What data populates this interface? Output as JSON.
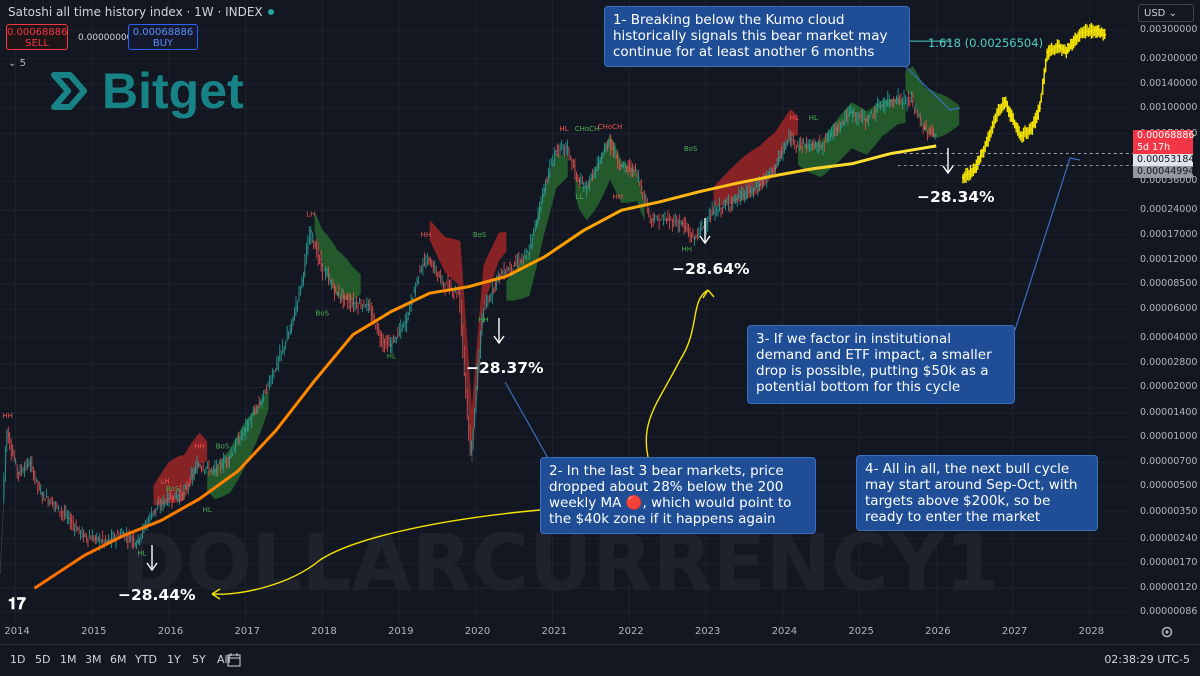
{
  "header": {
    "title": "Satoshi all time history index · 1W · INDEX",
    "sell_price": "0.00068886",
    "sell_label": "SELL",
    "spread": "0.00000000",
    "buy_price": "0.00068886",
    "buy_label": "BUY",
    "indicator_count": "5"
  },
  "logo": {
    "text": "Bitget",
    "color": "#1aa7a9"
  },
  "watermark": "DOLLARCURRENCY1",
  "currency_selector": "USD",
  "fib_label": "1.618 (0.00256504)",
  "annotations": [
    {
      "id": 1,
      "text": "1- Breaking below the Kumo cloud historically signals this bear market may continue for at least another 6 months"
    },
    {
      "id": 2,
      "text": "2- In the last 3 bear markets, price dropped about 28% below the 200 weekly MA 🔴, which would point to the $40k zone if it happens again"
    },
    {
      "id": 3,
      "text": "3- If we factor in institutional demand and ETF impact, a smaller drop is possible, putting $50k as a potential bottom for this cycle"
    },
    {
      "id": 4,
      "text": "4- All in all, the next bull cycle may start around Sep-Oct, with targets above $200k, so be ready to enter the market"
    }
  ],
  "drops": [
    "−28.44%",
    "−28.37%",
    "−28.64%",
    "−28.34%"
  ],
  "structure_labels": [
    "HH",
    "HH",
    "BoS",
    "LH",
    "BoS",
    "HL",
    "HL",
    "LH",
    "BoS",
    "HL",
    "HH",
    "BoS",
    "HH",
    "HL",
    "CHoCH",
    "CHoCH",
    "LL",
    "HH",
    "BoS",
    "HH",
    "HL",
    "HL"
  ],
  "price_tags": {
    "current": "0.00068886",
    "countdown": "5d 17h",
    "level_a": "0.00053184",
    "level_b": "0.00044994"
  },
  "colors": {
    "background": "#131722",
    "candle_up": "#26a69a",
    "candle_down": "#ef5350",
    "ma_line": "#ff9800",
    "cloud_bull": "#2e7d32",
    "cloud_bear": "#c62828",
    "projection": "#f5e400",
    "note_bg": "#1f4e97"
  },
  "chart_data": {
    "type": "line",
    "title": "Satoshi all time history index · 1W · INDEX",
    "yscale": "log",
    "ylim": [
      8.6e-07,
      0.003
    ],
    "xlim": [
      2013.9,
      2028.6
    ],
    "y_tick_labels": [
      "0.00300000",
      "0.00200000",
      "0.00140000",
      "0.00100000",
      "0.00070000",
      "0.00036000",
      "0.00024000",
      "0.00017000",
      "0.00012000",
      "0.00008500",
      "0.00006000",
      "0.00004000",
      "0.00002800",
      "0.00002000",
      "0.00001400",
      "0.00001000",
      "0.00000700",
      "0.00000500",
      "0.00000350",
      "0.00000240",
      "0.00000170",
      "0.00000120",
      "0.00000086"
    ],
    "x_tick_labels": [
      "2014",
      "2015",
      "2016",
      "2017",
      "2018",
      "2019",
      "2020",
      "2021",
      "2022",
      "2023",
      "2024",
      "2025",
      "2026",
      "2027",
      "2028"
    ],
    "series": [
      {
        "role": "price",
        "x": [
          2013.9,
          2014.0,
          2014.15,
          2014.3,
          2014.45,
          2014.6,
          2014.8,
          2015.0,
          2015.15,
          2015.3,
          2015.5,
          2015.7,
          2015.9,
          2016.1,
          2016.3,
          2016.5,
          2016.7,
          2016.9,
          2017.1,
          2017.3,
          2017.5,
          2017.7,
          2017.85,
          2017.96,
          2018.1,
          2018.3,
          2018.5,
          2018.7,
          2018.9,
          2019.0,
          2019.2,
          2019.4,
          2019.5,
          2019.7,
          2019.9,
          2020.05,
          2020.2,
          2020.4,
          2020.6,
          2020.8,
          2021.0,
          2021.15,
          2021.3,
          2021.45,
          2021.55,
          2021.7,
          2021.85,
          2022.0,
          2022.2,
          2022.4,
          2022.6,
          2022.8,
          2022.95,
          2023.2,
          2023.5,
          2023.8,
          2024.0,
          2024.2,
          2024.4,
          2024.6,
          2024.8,
          2025.0,
          2025.2,
          2025.4,
          2025.6,
          2025.8,
          2025.95,
          2026.1
        ],
        "y": [
          1.5e-06,
          1.1e-05,
          6e-06,
          7e-06,
          4.5e-06,
          4e-06,
          3.2e-06,
          2.5e-06,
          2.4e-06,
          2.3e-06,
          2.6e-06,
          2.3e-06,
          3.5e-06,
          4.2e-06,
          4.5e-06,
          6.8e-06,
          6.2e-06,
          7.5e-06,
          1.1e-05,
          1.6e-05,
          2.6e-05,
          4.5e-05,
          9e-05,
          0.00018,
          0.00011,
          7.5e-05,
          6.5e-05,
          6.4e-05,
          3.8e-05,
          3.6e-05,
          5e-05,
          0.00011,
          0.00012,
          8.5e-05,
          7.5e-05,
          7.2e-06,
          5.5e-05,
          9.5e-05,
          0.00011,
          0.00013,
          0.00032,
          0.00055,
          0.00058,
          0.00036,
          0.00033,
          0.00044,
          0.00064,
          0.00045,
          0.00042,
          0.00021,
          0.00021,
          0.0002,
          0.00016,
          0.00023,
          0.00028,
          0.00034,
          0.00043,
          0.00065,
          0.0006,
          0.00059,
          0.00075,
          0.00095,
          0.00085,
          0.00105,
          0.00115,
          0.0011,
          0.00075,
          0.00068886
        ]
      },
      {
        "role": "200W MA",
        "x": [
          2014.35,
          2015.0,
          2015.5,
          2016.0,
          2016.5,
          2017.0,
          2017.5,
          2018.0,
          2018.5,
          2019.0,
          2019.5,
          2020.0,
          2020.5,
          2021.0,
          2021.5,
          2022.0,
          2022.5,
          2023.0,
          2023.5,
          2024.0,
          2024.5,
          2025.0,
          2025.5,
          2026.0,
          2026.1
        ],
        "y": [
          1.2e-06,
          1.9e-06,
          2.5e-06,
          3.1e-06,
          4.2e-06,
          6.2e-06,
          1.1e-05,
          2.2e-05,
          4.2e-05,
          5.8e-05,
          7.5e-05,
          8.2e-05,
          9.5e-05,
          0.000125,
          0.00018,
          0.00024,
          0.00027,
          0.00031,
          0.00035,
          0.00039,
          0.00043,
          0.00046,
          0.00053,
          0.00058,
          0.00059
        ]
      },
      {
        "role": "projection",
        "x": [
          2026.45,
          2026.6,
          2026.75,
          2026.9,
          2027.0,
          2027.1,
          2027.2,
          2027.35,
          2027.45,
          2027.55,
          2027.7,
          2027.8,
          2027.9,
          2028.0,
          2028.2,
          2028.3
        ],
        "y": [
          0.00038,
          0.00042,
          0.0006,
          0.00095,
          0.0011,
          0.00085,
          0.00068,
          0.00075,
          0.001,
          0.0022,
          0.0024,
          0.0022,
          0.0026,
          0.0029,
          0.003,
          0.0028
        ]
      }
    ]
  },
  "bottom_bar": {
    "timeframes": [
      "1D",
      "5D",
      "1M",
      "3M",
      "6M",
      "YTD",
      "1Y",
      "5Y",
      "All"
    ],
    "clock": "02:38:29 UTC-5"
  }
}
